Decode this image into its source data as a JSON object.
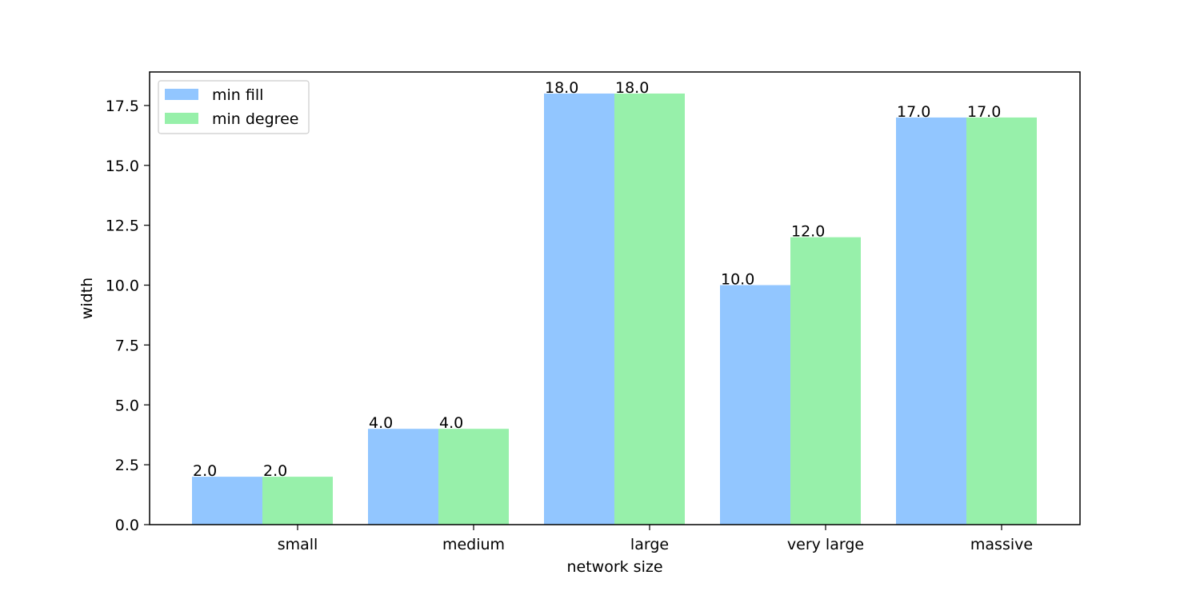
{
  "chart_data": {
    "type": "bar",
    "title": "",
    "xlabel": "network size",
    "ylabel": "width",
    "categories": [
      "small",
      "medium",
      "large",
      "very large",
      "massive"
    ],
    "series": [
      {
        "name": "min fill",
        "color": "#92c6ff",
        "values": [
          2.0,
          4.0,
          18.0,
          10.0,
          17.0
        ],
        "labels": [
          "2.0",
          "4.0",
          "18.0",
          "10.0",
          "17.0"
        ]
      },
      {
        "name": "min degree",
        "color": "#97f0aa",
        "values": [
          2.0,
          4.0,
          18.0,
          12.0,
          17.0
        ],
        "labels": [
          "2.0",
          "4.0",
          "18.0",
          "12.0",
          "17.0"
        ]
      }
    ],
    "ylim": [
      0,
      18.9
    ],
    "yticks": [
      0.0,
      2.5,
      5.0,
      7.5,
      10.0,
      12.5,
      15.0,
      17.5
    ],
    "ytick_labels": [
      "0.0",
      "2.5",
      "5.0",
      "7.5",
      "10.0",
      "12.5",
      "15.0",
      "17.5"
    ],
    "grid": false,
    "legend_position": "top-left"
  }
}
